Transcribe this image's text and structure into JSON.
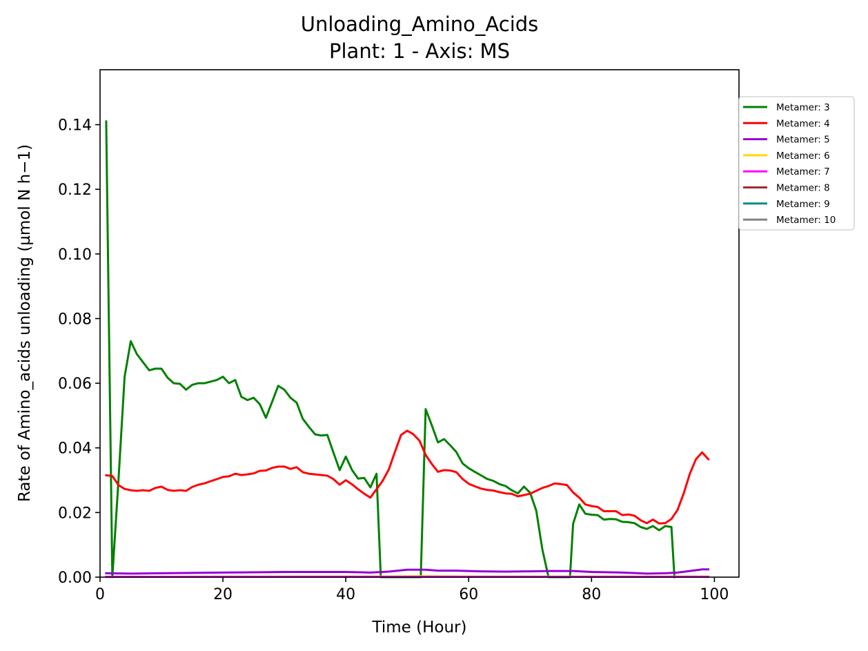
{
  "chart_data": {
    "type": "line",
    "title": "Unloading_Amino_Acids",
    "subtitle": "Plant: 1 - Axis: MS",
    "xlabel": "Time (Hour)",
    "ylabel": "Rate of Amino_acids unloading (µmol N h−1)",
    "xlim": [
      0,
      104
    ],
    "ylim": [
      0,
      0.157
    ],
    "x_ticks": [
      0,
      20,
      40,
      60,
      80,
      100
    ],
    "x_tick_labels": [
      "0",
      "20",
      "40",
      "60",
      "80",
      "100"
    ],
    "y_ticks": [
      0,
      0.02,
      0.04,
      0.06,
      0.08,
      0.1,
      0.12,
      0.14
    ],
    "y_tick_labels": [
      "0.00",
      "0.02",
      "0.04",
      "0.06",
      "0.08",
      "0.10",
      "0.12",
      "0.14"
    ],
    "grid": false,
    "legend_position": "outside-top-right",
    "series": [
      {
        "name": "Metamer: 3",
        "color": "#008000",
        "points": [
          [
            1,
            0.141
          ],
          [
            2,
            0.0
          ],
          [
            3,
            0.03
          ],
          [
            4,
            0.062
          ],
          [
            5,
            0.073
          ],
          [
            6,
            0.069
          ],
          [
            7,
            0.0665
          ],
          [
            8,
            0.064
          ],
          [
            9,
            0.0645
          ],
          [
            10,
            0.0645
          ],
          [
            11,
            0.0617
          ],
          [
            12,
            0.06
          ],
          [
            13,
            0.0598
          ],
          [
            14,
            0.058
          ],
          [
            15,
            0.0595
          ],
          [
            16,
            0.06
          ],
          [
            17,
            0.06
          ],
          [
            18,
            0.0605
          ],
          [
            19,
            0.061
          ],
          [
            20,
            0.062
          ],
          [
            21,
            0.06
          ],
          [
            22,
            0.061
          ],
          [
            23,
            0.0558
          ],
          [
            24,
            0.0548
          ],
          [
            25,
            0.0555
          ],
          [
            26,
            0.0535
          ],
          [
            27,
            0.0493
          ],
          [
            28,
            0.0542
          ],
          [
            29,
            0.0592
          ],
          [
            30,
            0.058
          ],
          [
            31,
            0.0555
          ],
          [
            32,
            0.054
          ],
          [
            33,
            0.049
          ],
          [
            34,
            0.0465
          ],
          [
            35,
            0.0442
          ],
          [
            36,
            0.0438
          ],
          [
            37,
            0.044
          ],
          [
            38,
            0.0385
          ],
          [
            39,
            0.0331
          ],
          [
            40,
            0.0373
          ],
          [
            41,
            0.0332
          ],
          [
            42,
            0.0305
          ],
          [
            43,
            0.0307
          ],
          [
            44,
            0.0278
          ],
          [
            45,
            0.032
          ],
          [
            45.7,
            0.0
          ],
          [
            52.2,
            0.0
          ],
          [
            53,
            0.052
          ],
          [
            54,
            0.047
          ],
          [
            55,
            0.0417
          ],
          [
            56,
            0.0427
          ],
          [
            57,
            0.0408
          ],
          [
            58,
            0.0387
          ],
          [
            59,
            0.0352
          ],
          [
            60,
            0.0337
          ],
          [
            61,
            0.0326
          ],
          [
            62,
            0.0315
          ],
          [
            63,
            0.0304
          ],
          [
            64,
            0.0298
          ],
          [
            65,
            0.0288
          ],
          [
            66,
            0.0282
          ],
          [
            67,
            0.0269
          ],
          [
            68,
            0.0259
          ],
          [
            69,
            0.028
          ],
          [
            70,
            0.0261
          ],
          [
            71,
            0.0206
          ],
          [
            72,
            0.0085
          ],
          [
            73,
            0.0
          ],
          [
            76.5,
            0.0
          ],
          [
            77,
            0.0165
          ],
          [
            78,
            0.0225
          ],
          [
            79,
            0.0196
          ],
          [
            80,
            0.0193
          ],
          [
            81,
            0.0192
          ],
          [
            82,
            0.0178
          ],
          [
            83,
            0.018
          ],
          [
            84,
            0.0179
          ],
          [
            85,
            0.0171
          ],
          [
            86,
            0.017
          ],
          [
            87,
            0.0167
          ],
          [
            88,
            0.0155
          ],
          [
            89,
            0.0149
          ],
          [
            90,
            0.0158
          ],
          [
            91,
            0.0145
          ],
          [
            92,
            0.0158
          ],
          [
            93,
            0.0155
          ],
          [
            93.5,
            0.0
          ]
        ]
      },
      {
        "name": "Metamer: 4",
        "color": "#ff0000",
        "points": [
          [
            1,
            0.0315
          ],
          [
            2,
            0.0313
          ],
          [
            3,
            0.0285
          ],
          [
            4,
            0.0273
          ],
          [
            5,
            0.0269
          ],
          [
            6,
            0.0267
          ],
          [
            7,
            0.0269
          ],
          [
            8,
            0.0267
          ],
          [
            9,
            0.0276
          ],
          [
            10,
            0.028
          ],
          [
            11,
            0.027
          ],
          [
            12,
            0.0267
          ],
          [
            13,
            0.0269
          ],
          [
            14,
            0.0267
          ],
          [
            15,
            0.0279
          ],
          [
            16,
            0.0286
          ],
          [
            17,
            0.029
          ],
          [
            18,
            0.0297
          ],
          [
            19,
            0.0303
          ],
          [
            20,
            0.031
          ],
          [
            21,
            0.0312
          ],
          [
            22,
            0.032
          ],
          [
            23,
            0.0316
          ],
          [
            24,
            0.0318
          ],
          [
            25,
            0.0321
          ],
          [
            26,
            0.0329
          ],
          [
            27,
            0.033
          ],
          [
            28,
            0.0338
          ],
          [
            29,
            0.0342
          ],
          [
            30,
            0.0342
          ],
          [
            31,
            0.0335
          ],
          [
            32,
            0.034
          ],
          [
            33,
            0.0325
          ],
          [
            34,
            0.032
          ],
          [
            35,
            0.0318
          ],
          [
            36,
            0.0316
          ],
          [
            37,
            0.0314
          ],
          [
            38,
            0.0303
          ],
          [
            39,
            0.0286
          ],
          [
            40,
            0.03
          ],
          [
            41,
            0.0287
          ],
          [
            42,
            0.0272
          ],
          [
            43,
            0.0258
          ],
          [
            44,
            0.0246
          ],
          [
            45,
            0.0272
          ],
          [
            46,
            0.0298
          ],
          [
            47,
            0.0333
          ],
          [
            48,
            0.0388
          ],
          [
            49,
            0.044
          ],
          [
            50,
            0.0453
          ],
          [
            51,
            0.0442
          ],
          [
            52,
            0.0422
          ],
          [
            53,
            0.0378
          ],
          [
            54,
            0.035
          ],
          [
            55,
            0.0326
          ],
          [
            56,
            0.0331
          ],
          [
            57,
            0.033
          ],
          [
            58,
            0.0325
          ],
          [
            59,
            0.0304
          ],
          [
            60,
            0.0289
          ],
          [
            61,
            0.0281
          ],
          [
            62,
            0.0274
          ],
          [
            63,
            0.027
          ],
          [
            64,
            0.0268
          ],
          [
            65,
            0.0263
          ],
          [
            66,
            0.0259
          ],
          [
            67,
            0.0258
          ],
          [
            68,
            0.025
          ],
          [
            69,
            0.0254
          ],
          [
            70,
            0.0258
          ],
          [
            71,
            0.0267
          ],
          [
            72,
            0.0276
          ],
          [
            73,
            0.0282
          ],
          [
            74,
            0.029
          ],
          [
            75,
            0.0288
          ],
          [
            76,
            0.0285
          ],
          [
            77,
            0.0262
          ],
          [
            78,
            0.0246
          ],
          [
            79,
            0.0225
          ],
          [
            80,
            0.022
          ],
          [
            81,
            0.0217
          ],
          [
            82,
            0.0204
          ],
          [
            83,
            0.0204
          ],
          [
            84,
            0.0204
          ],
          [
            85,
            0.0192
          ],
          [
            86,
            0.0194
          ],
          [
            87,
            0.019
          ],
          [
            88,
            0.0176
          ],
          [
            89,
            0.0167
          ],
          [
            90,
            0.0178
          ],
          [
            91,
            0.0166
          ],
          [
            92,
            0.0167
          ],
          [
            93,
            0.018
          ],
          [
            94,
            0.0208
          ],
          [
            95,
            0.0259
          ],
          [
            96,
            0.032
          ],
          [
            97,
            0.0365
          ],
          [
            98,
            0.0386
          ],
          [
            99,
            0.0365
          ]
        ]
      },
      {
        "name": "Metamer: 5",
        "color": "#9400d3",
        "points": [
          [
            1,
            0.0012
          ],
          [
            5,
            0.0011
          ],
          [
            10,
            0.0012
          ],
          [
            15,
            0.0013
          ],
          [
            20,
            0.0014
          ],
          [
            25,
            0.0015
          ],
          [
            30,
            0.0016
          ],
          [
            35,
            0.0016
          ],
          [
            40,
            0.0016
          ],
          [
            44,
            0.0014
          ],
          [
            47,
            0.0017
          ],
          [
            50,
            0.0023
          ],
          [
            53,
            0.0023
          ],
          [
            55,
            0.002
          ],
          [
            58,
            0.002
          ],
          [
            62,
            0.0018
          ],
          [
            66,
            0.0017
          ],
          [
            70,
            0.0018
          ],
          [
            73,
            0.0019
          ],
          [
            77,
            0.0019
          ],
          [
            80,
            0.0016
          ],
          [
            85,
            0.0014
          ],
          [
            89,
            0.0011
          ],
          [
            92,
            0.0012
          ],
          [
            94,
            0.0014
          ],
          [
            96,
            0.0019
          ],
          [
            98,
            0.0024
          ],
          [
            99,
            0.0024
          ]
        ]
      },
      {
        "name": "Metamer: 6",
        "color": "#ffd700",
        "points": [
          [
            1,
            0.0001
          ],
          [
            45,
            0.0002
          ],
          [
            52,
            0.0003
          ],
          [
            60,
            0.0002
          ],
          [
            99,
            0.0002
          ]
        ]
      },
      {
        "name": "Metamer: 7",
        "color": "#ff00ff",
        "points": [
          [
            1,
            0.0001
          ],
          [
            99,
            0.0001
          ]
        ]
      },
      {
        "name": "Metamer: 8",
        "color": "#a52a2a",
        "points": []
      },
      {
        "name": "Metamer: 9",
        "color": "#008b8b",
        "points": []
      },
      {
        "name": "Metamer: 10",
        "color": "#808080",
        "points": []
      }
    ]
  }
}
